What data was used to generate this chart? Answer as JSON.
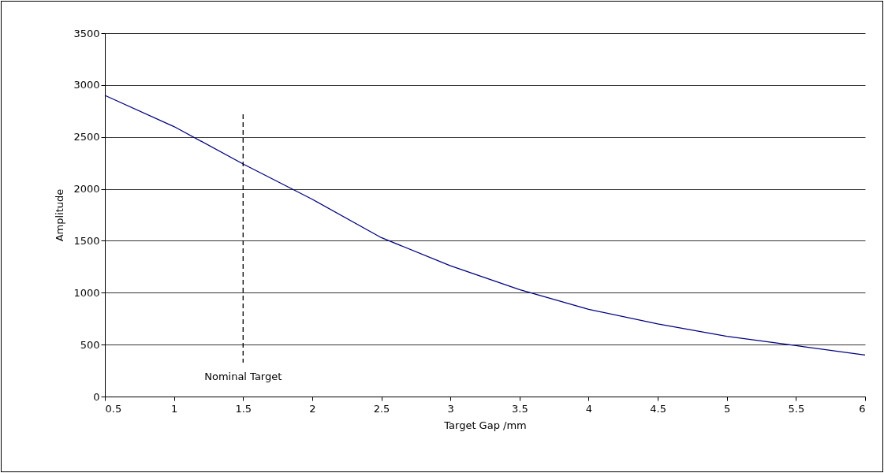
{
  "chart_data": {
    "type": "line",
    "xlabel": "Target Gap /mm",
    "ylabel": "Amplitude",
    "x": [
      0.5,
      1,
      1.5,
      2,
      2.5,
      3,
      3.5,
      4,
      4.5,
      5,
      5.5,
      6
    ],
    "series": [
      {
        "color": "#000080",
        "values": [
          2900,
          2600,
          2240,
          1900,
          1530,
          1260,
          1030,
          840,
          700,
          580,
          490,
          400
        ]
      }
    ],
    "xlim": [
      0.5,
      6
    ],
    "xticks": [
      0.5,
      1,
      1.5,
      2,
      2.5,
      3,
      3.5,
      4,
      4.5,
      5,
      5.5,
      6
    ],
    "ylim": [
      0,
      3500
    ],
    "yticks": [
      0,
      500,
      1000,
      1500,
      2000,
      2500,
      3000,
      3500
    ],
    "grid": "y",
    "marker": "none",
    "line_style": "solid",
    "ref_lines": [
      {
        "axis": "x",
        "value": 1.5,
        "label": "Nominal Target",
        "color": "#000000",
        "line_style": "dashed"
      }
    ]
  }
}
